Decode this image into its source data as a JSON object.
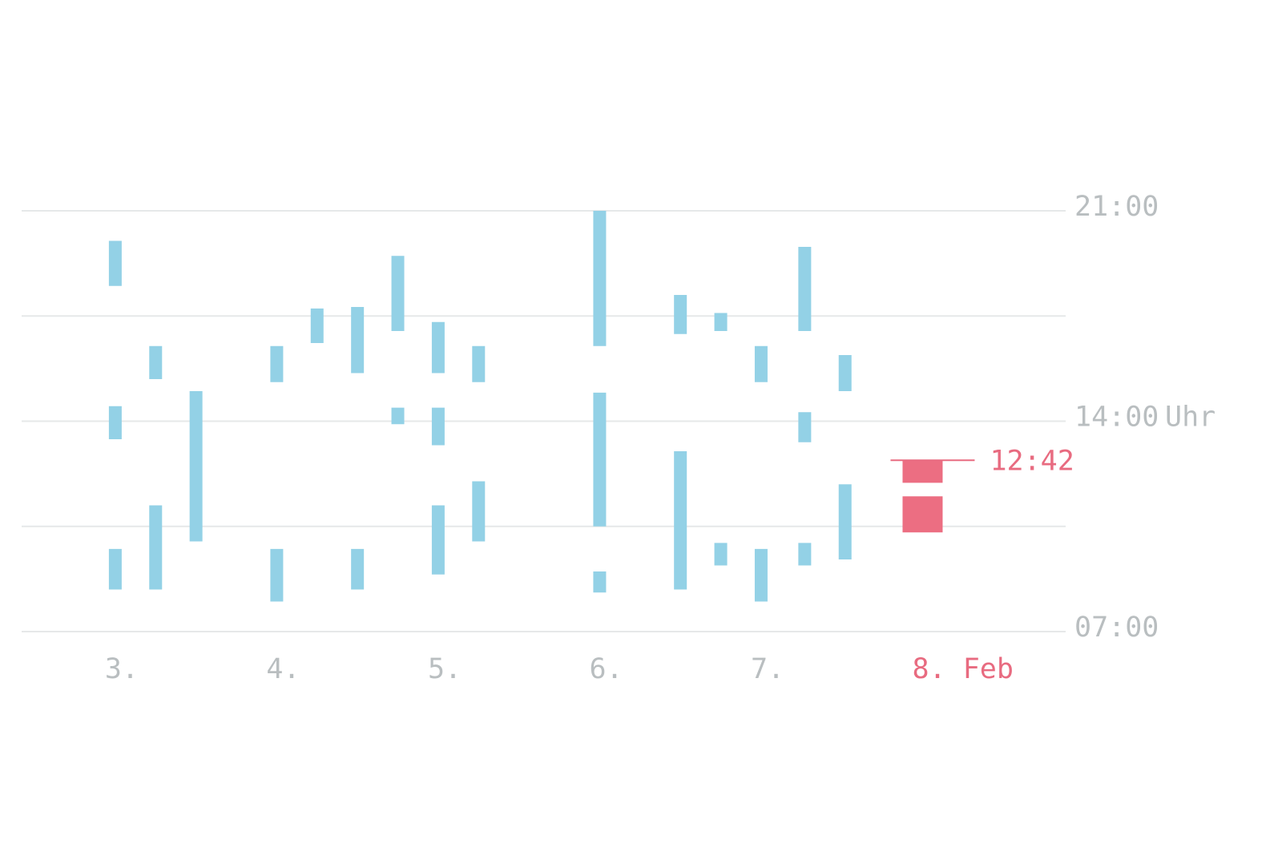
{
  "chart_data": {
    "type": "timeline",
    "y_axis": {
      "unit": "hour of day",
      "ylim": [
        7,
        21
      ],
      "gridlines": [
        7,
        10.5,
        14,
        17.5,
        21
      ],
      "tick_labels": [
        {
          "value": 21,
          "label": "21:00"
        },
        {
          "value": 14,
          "label": "14:00"
        },
        {
          "value": 7,
          "label": "07:00"
        }
      ],
      "unit_label": "Uhr"
    },
    "x_axis": {
      "categories": [
        {
          "day": 3,
          "label": "3."
        },
        {
          "day": 4,
          "label": "4."
        },
        {
          "day": 5,
          "label": "5."
        },
        {
          "day": 6,
          "label": "6."
        },
        {
          "day": 7,
          "label": "7."
        },
        {
          "day": 8,
          "label": "8. Feb"
        }
      ],
      "xlim": [
        2.4,
        9.0
      ]
    },
    "series": [
      {
        "color": "#93d1e6",
        "intervals": [
          {
            "day": 2.98,
            "start": 8.4,
            "end": 9.75
          },
          {
            "day": 2.98,
            "start": 13.4,
            "end": 14.5
          },
          {
            "day": 2.98,
            "start": 18.5,
            "end": 20.0
          },
          {
            "day": 3.23,
            "start": 8.4,
            "end": 11.2
          },
          {
            "day": 3.23,
            "start": 15.4,
            "end": 16.5
          },
          {
            "day": 3.48,
            "start": 10.0,
            "end": 15.0
          },
          {
            "day": 3.98,
            "start": 8.0,
            "end": 9.75
          },
          {
            "day": 3.98,
            "start": 15.3,
            "end": 16.5
          },
          {
            "day": 4.23,
            "start": 16.6,
            "end": 17.75
          },
          {
            "day": 4.48,
            "start": 8.4,
            "end": 9.75
          },
          {
            "day": 4.48,
            "start": 15.6,
            "end": 17.8
          },
          {
            "day": 4.73,
            "start": 13.9,
            "end": 14.45
          },
          {
            "day": 4.73,
            "start": 17.0,
            "end": 19.5
          },
          {
            "day": 4.98,
            "start": 8.9,
            "end": 11.2
          },
          {
            "day": 4.98,
            "start": 13.2,
            "end": 14.45
          },
          {
            "day": 4.98,
            "start": 15.6,
            "end": 17.3
          },
          {
            "day": 5.23,
            "start": 10.0,
            "end": 12.0
          },
          {
            "day": 5.23,
            "start": 15.3,
            "end": 16.5
          },
          {
            "day": 5.98,
            "start": 8.3,
            "end": 9.0
          },
          {
            "day": 5.98,
            "start": 10.5,
            "end": 14.95
          },
          {
            "day": 5.98,
            "start": 16.5,
            "end": 21.0
          },
          {
            "day": 6.48,
            "start": 8.4,
            "end": 13.0
          },
          {
            "day": 6.48,
            "start": 16.9,
            "end": 18.2
          },
          {
            "day": 6.73,
            "start": 9.2,
            "end": 9.95
          },
          {
            "day": 6.73,
            "start": 17.0,
            "end": 17.6
          },
          {
            "day": 6.98,
            "start": 8.0,
            "end": 9.75
          },
          {
            "day": 6.98,
            "start": 15.3,
            "end": 16.5
          },
          {
            "day": 7.25,
            "start": 9.2,
            "end": 9.95
          },
          {
            "day": 7.25,
            "start": 13.3,
            "end": 14.3
          },
          {
            "day": 7.25,
            "start": 17.0,
            "end": 19.8
          },
          {
            "day": 7.5,
            "start": 9.4,
            "end": 11.9
          },
          {
            "day": 7.5,
            "start": 15.0,
            "end": 16.2
          }
        ]
      },
      {
        "color": "#ec6e82",
        "intervals": [
          {
            "day": 7.98,
            "start": 10.3,
            "end": 11.5
          },
          {
            "day": 7.98,
            "start": 11.95,
            "end": 12.7
          }
        ]
      }
    ],
    "marker": {
      "day": 7.98,
      "time": 12.7,
      "label": "12:42",
      "color": "#e86b80"
    },
    "grid": true,
    "grid_color": "#e6e8e9",
    "label_color": "#b9bec0"
  }
}
